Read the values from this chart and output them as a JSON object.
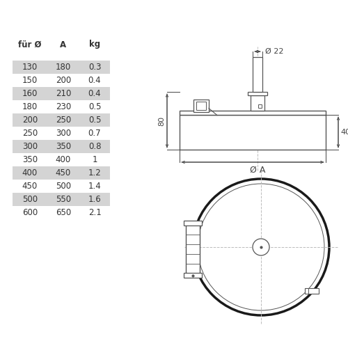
{
  "table_headers": [
    "für Ø",
    "A",
    "kg"
  ],
  "table_data": [
    [
      "130",
      "180",
      "0.3"
    ],
    [
      "150",
      "200",
      "0.4"
    ],
    [
      "160",
      "210",
      "0.4"
    ],
    [
      "180",
      "230",
      "0.5"
    ],
    [
      "200",
      "250",
      "0.5"
    ],
    [
      "250",
      "300",
      "0.7"
    ],
    [
      "300",
      "350",
      "0.8"
    ],
    [
      "350",
      "400",
      "1"
    ],
    [
      "400",
      "450",
      "1.2"
    ],
    [
      "450",
      "500",
      "1.4"
    ],
    [
      "500",
      "550",
      "1.6"
    ],
    [
      "600",
      "650",
      "2.1"
    ]
  ],
  "shaded_rows": [
    0,
    2,
    4,
    6,
    8,
    10
  ],
  "row_bg_shaded": "#d4d4d4",
  "row_bg_white": "#ffffff",
  "bg_color": "#ffffff",
  "line_color": "#555555",
  "dim_color": "#444444",
  "text_color": "#333333",
  "dim_22": "Ø 22",
  "dim_40": "40",
  "dim_80": "80",
  "dim_A": "Ø A"
}
